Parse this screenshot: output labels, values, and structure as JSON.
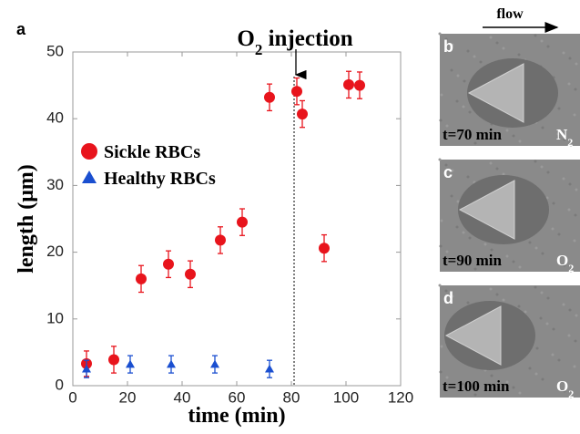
{
  "chart_data": {
    "type": "scatter",
    "panel_label": "a",
    "x_label": "time (min)",
    "y_label": "length (μm)",
    "annotation": {
      "text": "O",
      "sub": "2",
      "rest": " injection",
      "x": 81
    },
    "xlim": [
      0,
      120
    ],
    "xticks": [
      0,
      20,
      40,
      60,
      80,
      100,
      120
    ],
    "ylim": [
      0,
      50
    ],
    "yticks": [
      0,
      10,
      20,
      30,
      40,
      50
    ],
    "series": [
      {
        "name": "Sickle RBCs",
        "color": "#e8141c",
        "marker": "circle",
        "x": [
          5,
          15,
          25,
          35,
          43,
          54,
          62,
          72,
          82,
          84,
          92,
          101,
          105
        ],
        "values": [
          3.3,
          3.9,
          16.0,
          18.2,
          16.7,
          21.8,
          24.5,
          43.2,
          44.1,
          40.7,
          20.6,
          45.1,
          45.0
        ],
        "errors": [
          1.9,
          2,
          2,
          2,
          2,
          2,
          2,
          2,
          2,
          2,
          2,
          2,
          2
        ]
      },
      {
        "name": "Healthy RBCs",
        "color": "#1a4fd0",
        "marker": "triangle",
        "x": [
          5,
          21,
          36,
          52,
          72
        ],
        "values": [
          2.5,
          3.2,
          3.2,
          3.2,
          2.5
        ],
        "errors": [
          1.3,
          1.3,
          1.3,
          1.3,
          1.3
        ]
      }
    ]
  },
  "flow": "flow",
  "panels": [
    {
      "label": "b",
      "time": "t=70 min",
      "gas": "N",
      "gas_sub": "2"
    },
    {
      "label": "c",
      "time": "t=90 min",
      "gas": "O",
      "gas_sub": "2"
    },
    {
      "label": "d",
      "time": "t=100 min",
      "gas": "O",
      "gas_sub": "2"
    }
  ]
}
